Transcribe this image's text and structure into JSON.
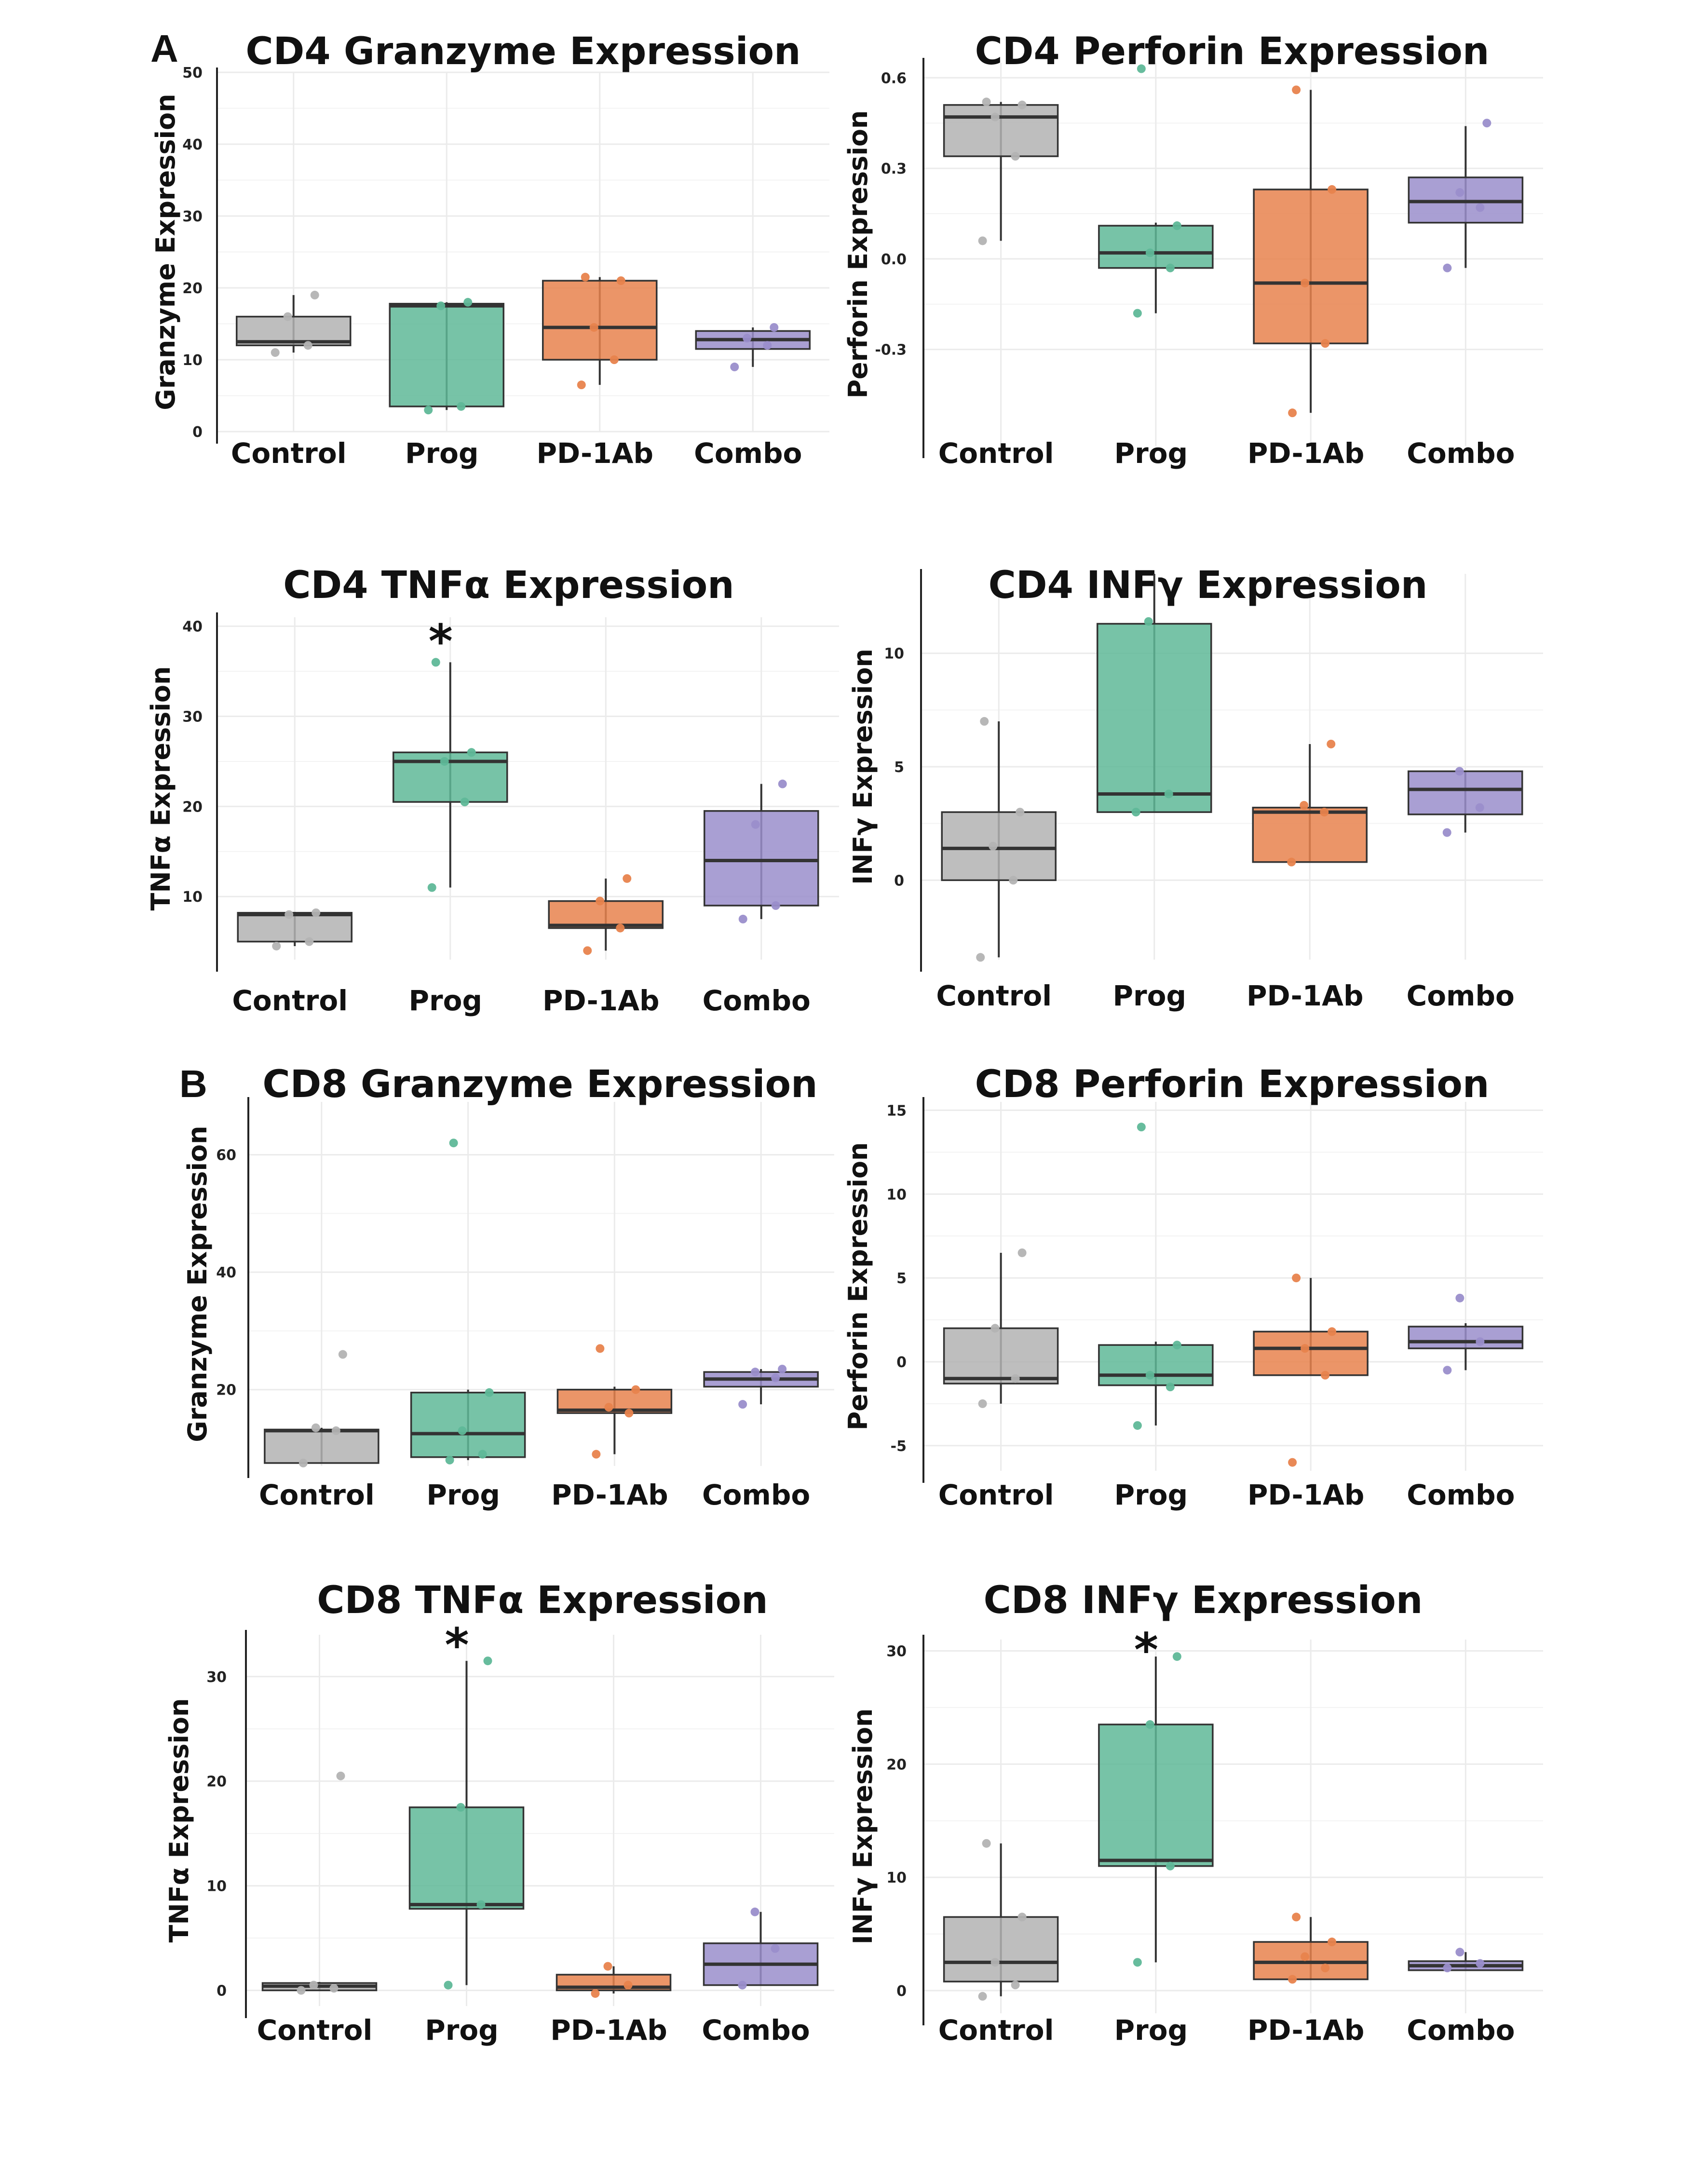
{
  "panel_labels": [
    "A",
    "B"
  ],
  "colors": {
    "Control": "#b3b3b3",
    "Prog": "#5fb898",
    "PD-1Ab": "#e8834d",
    "Combo": "#9a8ecb",
    "median": "#333333",
    "axis": "#222222",
    "grid": "#ebebeb"
  },
  "chart_data": [
    {
      "id": "cd4_granzyme",
      "panel": "A",
      "type": "box",
      "title": "CD4 Granzyme Expression",
      "ylabel": "Granzyme Expression",
      "categories": [
        "Control",
        "Prog",
        "PD-1Ab",
        "Combo"
      ],
      "ylim": [
        0,
        50
      ],
      "yticks": [
        0,
        10,
        20,
        30,
        40,
        50
      ],
      "significance": [],
      "boxes": [
        {
          "q1": 12,
          "median": 12.5,
          "q3": 16,
          "whisker_low": 11,
          "whisker_high": 19,
          "points": [
            11,
            12,
            16,
            19
          ]
        },
        {
          "q1": 3.5,
          "median": 17.5,
          "q3": 17.8,
          "whisker_low": 3,
          "whisker_high": 18,
          "points": [
            3,
            3.5,
            17.5,
            18
          ]
        },
        {
          "q1": 10,
          "median": 14.5,
          "q3": 21,
          "whisker_low": 6.5,
          "whisker_high": 21.5,
          "points": [
            6.5,
            10,
            14.5,
            21,
            21.5
          ]
        },
        {
          "q1": 11.5,
          "median": 12.8,
          "q3": 14,
          "whisker_low": 9,
          "whisker_high": 14.5,
          "points": [
            9,
            12,
            13,
            14.5
          ]
        }
      ]
    },
    {
      "id": "cd4_perforin",
      "panel": "A",
      "type": "box",
      "title": "CD4 Perforin Expression",
      "ylabel": "Perforin Expression",
      "categories": [
        "Control",
        "Prog",
        "PD-1Ab",
        "Combo"
      ],
      "ylim": [
        -0.62,
        0.65
      ],
      "yticks": [
        -0.3,
        0.0,
        0.3,
        0.6
      ],
      "tick_decimals": 1,
      "significance": [],
      "boxes": [
        {
          "q1": 0.34,
          "median": 0.47,
          "q3": 0.51,
          "whisker_low": 0.06,
          "whisker_high": 0.52,
          "points": [
            0.06,
            0.34,
            0.47,
            0.51,
            0.52
          ]
        },
        {
          "q1": -0.03,
          "median": 0.02,
          "q3": 0.11,
          "whisker_low": -0.18,
          "whisker_high": 0.12,
          "points": [
            -0.18,
            -0.03,
            0.02,
            0.11,
            0.63
          ]
        },
        {
          "q1": -0.28,
          "median": -0.08,
          "q3": 0.23,
          "whisker_low": -0.51,
          "whisker_high": 0.56,
          "points": [
            -0.51,
            -0.28,
            -0.08,
            0.23,
            0.56
          ]
        },
        {
          "q1": 0.12,
          "median": 0.19,
          "q3": 0.27,
          "whisker_low": -0.03,
          "whisker_high": 0.44,
          "points": [
            -0.03,
            0.17,
            0.22,
            0.45
          ]
        }
      ]
    },
    {
      "id": "cd4_tnfa",
      "panel": "A",
      "type": "box",
      "title": "CD4 TNFα Expression",
      "ylabel": "TNFα Expression",
      "categories": [
        "Control",
        "Prog",
        "PD-1Ab",
        "Combo"
      ],
      "ylim": [
        3,
        41
      ],
      "yticks": [
        10,
        20,
        30,
        40
      ],
      "significance": [
        "Prog"
      ],
      "boxes": [
        {
          "q1": 5,
          "median": 8,
          "q3": 8.2,
          "whisker_low": 4.5,
          "whisker_high": 8.3,
          "points": [
            4.5,
            5,
            8,
            8.2
          ]
        },
        {
          "q1": 20.5,
          "median": 25,
          "q3": 26,
          "whisker_low": 11,
          "whisker_high": 36,
          "points": [
            11,
            20.5,
            25,
            26,
            36
          ]
        },
        {
          "q1": 6.5,
          "median": 6.8,
          "q3": 9.5,
          "whisker_low": 4,
          "whisker_high": 12,
          "points": [
            4,
            6.5,
            9.5,
            12
          ]
        },
        {
          "q1": 9,
          "median": 14,
          "q3": 19.5,
          "whisker_low": 7.5,
          "whisker_high": 22.5,
          "points": [
            7.5,
            9,
            18,
            22.5
          ]
        }
      ]
    },
    {
      "id": "cd4_infg",
      "panel": "A",
      "type": "box",
      "title": "CD4 INFγ Expression",
      "ylabel": "INFγ Expression",
      "categories": [
        "Control",
        "Prog",
        "PD-1Ab",
        "Combo"
      ],
      "ylim": [
        -3.5,
        13.5
      ],
      "yticks": [
        0,
        5,
        10
      ],
      "significance": [],
      "boxes": [
        {
          "q1": 0,
          "median": 1.4,
          "q3": 3,
          "whisker_low": -3.4,
          "whisker_high": 7,
          "points": [
            -3.4,
            0,
            1.5,
            3,
            7
          ]
        },
        {
          "q1": 3,
          "median": 3.8,
          "q3": 11.3,
          "whisker_low": 3,
          "whisker_high": 13.5,
          "points": [
            3,
            3.8,
            11.4
          ]
        },
        {
          "q1": 0.8,
          "median": 3,
          "q3": 3.2,
          "whisker_low": 0.8,
          "whisker_high": 6,
          "points": [
            0.8,
            3,
            3.3,
            6
          ]
        },
        {
          "q1": 2.9,
          "median": 4,
          "q3": 4.8,
          "whisker_low": 2.1,
          "whisker_high": 4.8,
          "points": [
            2.1,
            3.2,
            4.8
          ]
        }
      ]
    },
    {
      "id": "cd8_granzyme",
      "panel": "B",
      "type": "box",
      "title": "CD8 Granzyme Expression",
      "ylabel": "Granzyme Expression",
      "categories": [
        "Control",
        "Prog",
        "PD-1Ab",
        "Combo"
      ],
      "ylim": [
        7,
        69
      ],
      "yticks": [
        20,
        40,
        60
      ],
      "significance": [],
      "boxes": [
        {
          "q1": 7.5,
          "median": 13,
          "q3": 13.2,
          "whisker_low": 7.5,
          "whisker_high": 13.5,
          "points": [
            7.5,
            13,
            13.5,
            26
          ]
        },
        {
          "q1": 8.5,
          "median": 12.5,
          "q3": 19.5,
          "whisker_low": 8,
          "whisker_high": 20,
          "points": [
            8,
            9,
            13,
            19.5,
            62
          ]
        },
        {
          "q1": 16,
          "median": 16.5,
          "q3": 20,
          "whisker_low": 9,
          "whisker_high": 20.5,
          "points": [
            9,
            16,
            17,
            20,
            27
          ]
        },
        {
          "q1": 20.5,
          "median": 21.8,
          "q3": 23,
          "whisker_low": 17.5,
          "whisker_high": 23.5,
          "points": [
            17.5,
            22,
            23,
            23.5
          ]
        }
      ]
    },
    {
      "id": "cd8_perforin",
      "panel": "B",
      "type": "box",
      "title": "CD8 Perforin Expression",
      "ylabel": "Perforin Expression",
      "categories": [
        "Control",
        "Prog",
        "PD-1Ab",
        "Combo"
      ],
      "ylim": [
        -6.5,
        15.5
      ],
      "yticks": [
        -5,
        0,
        5,
        10,
        15
      ],
      "significance": [],
      "boxes": [
        {
          "q1": -1.3,
          "median": -1,
          "q3": 2,
          "whisker_low": -2.5,
          "whisker_high": 6.5,
          "points": [
            -2.5,
            -1,
            2,
            6.5
          ]
        },
        {
          "q1": -1.4,
          "median": -0.8,
          "q3": 1,
          "whisker_low": -3.8,
          "whisker_high": 1.2,
          "points": [
            -3.8,
            -1.5,
            -0.8,
            1,
            14
          ]
        },
        {
          "q1": -0.8,
          "median": 0.8,
          "q3": 1.8,
          "whisker_low": -0.8,
          "whisker_high": 5,
          "points": [
            -6,
            -0.8,
            0.8,
            1.8,
            5
          ]
        },
        {
          "q1": 0.8,
          "median": 1.2,
          "q3": 2.1,
          "whisker_low": -0.5,
          "whisker_high": 2.3,
          "points": [
            -0.5,
            1.2,
            3.8
          ]
        }
      ]
    },
    {
      "id": "cd8_tnfa",
      "panel": "B",
      "type": "box",
      "title": "CD8 TNFα Expression",
      "ylabel": "TNFα Expression",
      "categories": [
        "Control",
        "Prog",
        "PD-1Ab",
        "Combo"
      ],
      "ylim": [
        -1.5,
        34
      ],
      "yticks": [
        0,
        10,
        20,
        30
      ],
      "significance": [
        "Prog"
      ],
      "boxes": [
        {
          "q1": 0,
          "median": 0.4,
          "q3": 0.7,
          "whisker_low": 0,
          "whisker_high": 0.8,
          "points": [
            0,
            0.2,
            0.5,
            20.5
          ]
        },
        {
          "q1": 7.8,
          "median": 8.2,
          "q3": 17.5,
          "whisker_low": 0.5,
          "whisker_high": 31.5,
          "points": [
            0.5,
            8.2,
            17.5,
            31.5
          ]
        },
        {
          "q1": 0,
          "median": 0.3,
          "q3": 1.5,
          "whisker_low": -0.3,
          "whisker_high": 2.3,
          "points": [
            -0.3,
            0.5,
            2.3
          ]
        },
        {
          "q1": 0.5,
          "median": 2.5,
          "q3": 4.5,
          "whisker_low": 0.5,
          "whisker_high": 7.5,
          "points": [
            0.5,
            4,
            7.5
          ]
        }
      ]
    },
    {
      "id": "cd8_infg",
      "panel": "B",
      "type": "box",
      "title": "CD8 INFγ Expression",
      "ylabel": "INFγ Expression",
      "categories": [
        "Control",
        "Prog",
        "PD-1Ab",
        "Combo"
      ],
      "ylim": [
        -2,
        31
      ],
      "yticks": [
        0,
        10,
        20,
        30
      ],
      "significance": [
        "Prog"
      ],
      "boxes": [
        {
          "q1": 0.8,
          "median": 2.5,
          "q3": 6.5,
          "whisker_low": -0.5,
          "whisker_high": 13,
          "points": [
            -0.5,
            0.5,
            2.5,
            6.5,
            13
          ]
        },
        {
          "q1": 11,
          "median": 11.5,
          "q3": 23.5,
          "whisker_low": 2.5,
          "whisker_high": 29.5,
          "points": [
            2.5,
            11,
            23.5,
            29.5
          ]
        },
        {
          "q1": 1,
          "median": 2.5,
          "q3": 4.3,
          "whisker_low": 1,
          "whisker_high": 6.5,
          "points": [
            1,
            2,
            3,
            4.3,
            6.5
          ]
        },
        {
          "q1": 1.8,
          "median": 2.2,
          "q3": 2.6,
          "whisker_low": 1.8,
          "whisker_high": 3.4,
          "points": [
            2,
            2.4,
            3.4
          ]
        }
      ]
    }
  ]
}
